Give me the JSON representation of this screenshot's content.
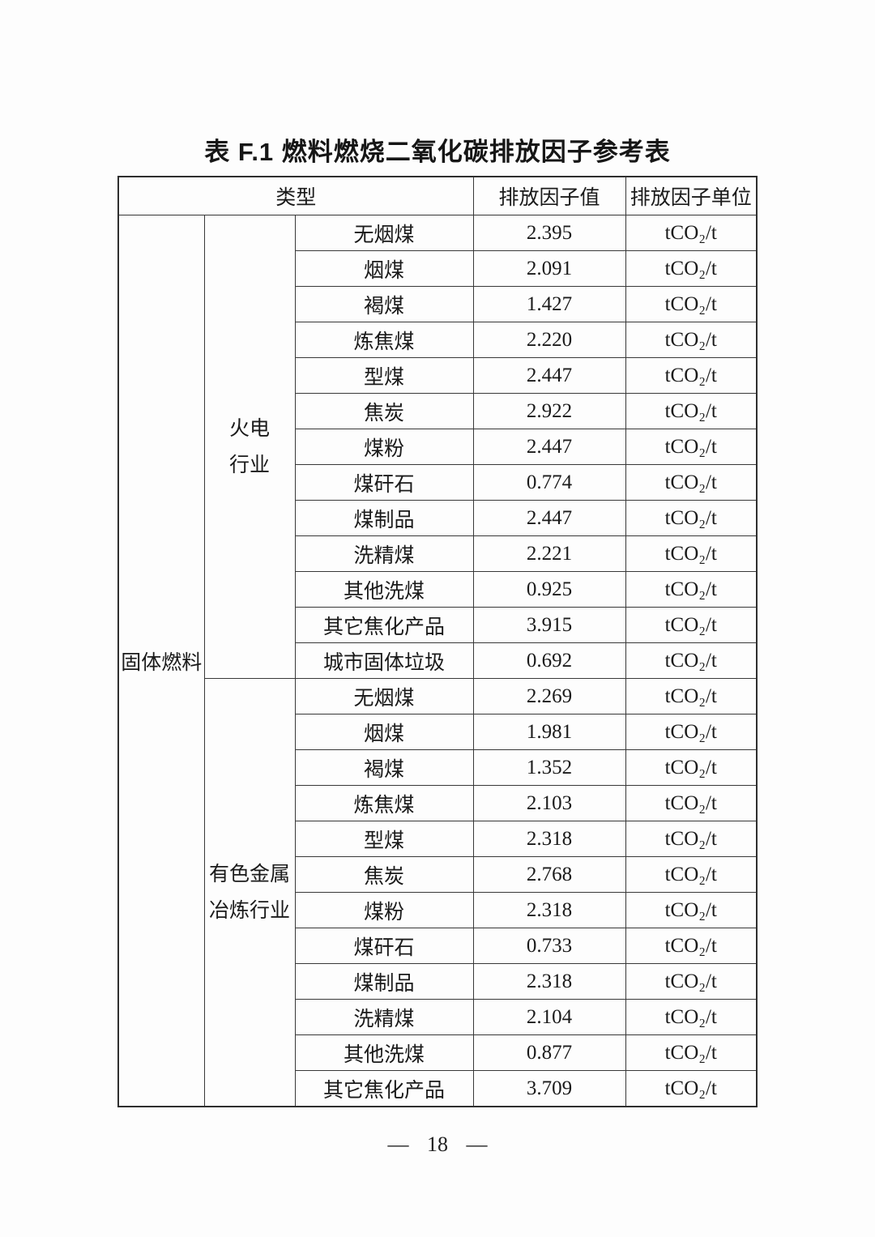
{
  "page": {
    "title": "表 F.1  燃料燃烧二氧化碳排放因子参考表",
    "footer": "— 18 —"
  },
  "table": {
    "headers": {
      "type": "类型",
      "factor_value": "排放因子值",
      "factor_unit": "排放因子单位"
    },
    "category": "固体燃料",
    "sections": [
      {
        "industry": "火电\n行业",
        "rows": [
          {
            "fuel": "无烟煤",
            "value": "2.395",
            "unit": "tCO₂/t"
          },
          {
            "fuel": "烟煤",
            "value": "2.091",
            "unit": "tCO₂/t"
          },
          {
            "fuel": "褐煤",
            "value": "1.427",
            "unit": "tCO₂/t"
          },
          {
            "fuel": "炼焦煤",
            "value": "2.220",
            "unit": "tCO₂/t"
          },
          {
            "fuel": "型煤",
            "value": "2.447",
            "unit": "tCO₂/t"
          },
          {
            "fuel": "焦炭",
            "value": "2.922",
            "unit": "tCO₂/t"
          },
          {
            "fuel": "煤粉",
            "value": "2.447",
            "unit": "tCO₂/t"
          },
          {
            "fuel": "煤矸石",
            "value": "0.774",
            "unit": "tCO₂/t"
          },
          {
            "fuel": "煤制品",
            "value": "2.447",
            "unit": "tCO₂/t"
          },
          {
            "fuel": "洗精煤",
            "value": "2.221",
            "unit": "tCO₂/t"
          },
          {
            "fuel": "其他洗煤",
            "value": "0.925",
            "unit": "tCO₂/t"
          },
          {
            "fuel": "其它焦化产品",
            "value": "3.915",
            "unit": "tCO₂/t"
          },
          {
            "fuel": "城市固体垃圾",
            "value": "0.692",
            "unit": "tCO₂/t"
          }
        ]
      },
      {
        "industry": "有色金属\n冶炼行业",
        "rows": [
          {
            "fuel": "无烟煤",
            "value": "2.269",
            "unit": "tCO₂/t"
          },
          {
            "fuel": "烟煤",
            "value": "1.981",
            "unit": "tCO₂/t"
          },
          {
            "fuel": "褐煤",
            "value": "1.352",
            "unit": "tCO₂/t"
          },
          {
            "fuel": "炼焦煤",
            "value": "2.103",
            "unit": "tCO₂/t"
          },
          {
            "fuel": "型煤",
            "value": "2.318",
            "unit": "tCO₂/t"
          },
          {
            "fuel": "焦炭",
            "value": "2.768",
            "unit": "tCO₂/t"
          },
          {
            "fuel": "煤粉",
            "value": "2.318",
            "unit": "tCO₂/t"
          },
          {
            "fuel": "煤矸石",
            "value": "0.733",
            "unit": "tCO₂/t"
          },
          {
            "fuel": "煤制品",
            "value": "2.318",
            "unit": "tCO₂/t"
          },
          {
            "fuel": "洗精煤",
            "value": "2.104",
            "unit": "tCO₂/t"
          },
          {
            "fuel": "其他洗煤",
            "value": "0.877",
            "unit": "tCO₂/t"
          },
          {
            "fuel": "其它焦化产品",
            "value": "3.709",
            "unit": "tCO₂/t"
          }
        ]
      }
    ]
  }
}
